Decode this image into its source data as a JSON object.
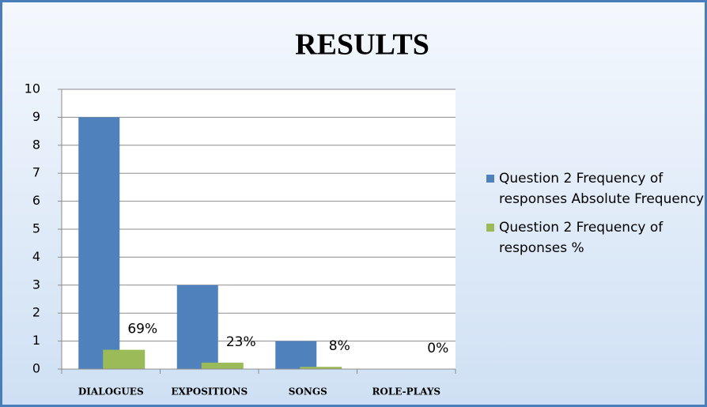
{
  "chart_data": {
    "type": "bar",
    "title": "RESULTS",
    "categories": [
      "DIALOGUES",
      "EXPOSITIONS",
      "SONGS",
      "ROLE-PLAYS"
    ],
    "series": [
      {
        "name": "Question 2 Frequency of responses Absolute Frequency",
        "color": "#4f81bd",
        "values": [
          9,
          3,
          1,
          0
        ]
      },
      {
        "name": "Question 2 Frequency of responses %",
        "color": "#9bbb59",
        "values": [
          0.69,
          0.23,
          0.08,
          0
        ],
        "value_labels": [
          "69%",
          "23%",
          "8%",
          "0%"
        ]
      }
    ],
    "ylim": [
      0,
      10
    ],
    "yticks": [
      0,
      1,
      2,
      3,
      4,
      5,
      6,
      7,
      8,
      9,
      10
    ],
    "grid": true,
    "legend": "right"
  }
}
